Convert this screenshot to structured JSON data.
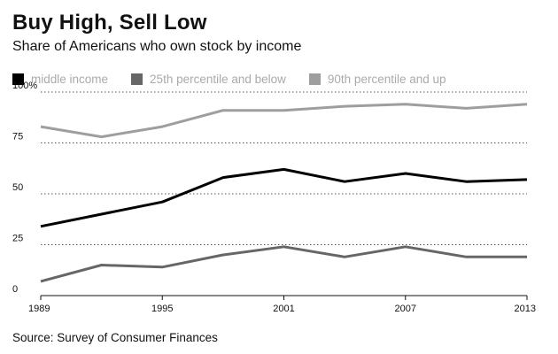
{
  "chart_data": {
    "type": "line",
    "title": "Buy High, Sell Low",
    "subtitle": "Share of Americans who own stock by income",
    "source": "Source: Survey of Consumer Finances",
    "x": [
      1989,
      1992,
      1995,
      1998,
      2001,
      2004,
      2007,
      2010,
      2013
    ],
    "xticks": [
      "1989",
      "1995",
      "2001",
      "2007",
      "2013"
    ],
    "xtick_values": [
      1989,
      1995,
      2001,
      2007,
      2013
    ],
    "xlim": [
      1989,
      2013
    ],
    "ylim": [
      0,
      100
    ],
    "yticks": [
      "0",
      "25",
      "50",
      "75",
      "100%"
    ],
    "ytick_values": [
      0,
      25,
      50,
      75,
      100
    ],
    "series": [
      {
        "name": "middle income",
        "color": "#000000",
        "values": [
          34,
          40,
          46,
          58,
          62,
          56,
          60,
          56,
          57
        ]
      },
      {
        "name": "25th percentile and below",
        "color": "#666666",
        "values": [
          7,
          15,
          14,
          20,
          24,
          19,
          24,
          19,
          19
        ]
      },
      {
        "name": "90th percentile and up",
        "color": "#9e9e9e",
        "values": [
          83,
          78,
          83,
          91,
          91,
          93,
          94,
          92,
          94
        ]
      }
    ]
  }
}
